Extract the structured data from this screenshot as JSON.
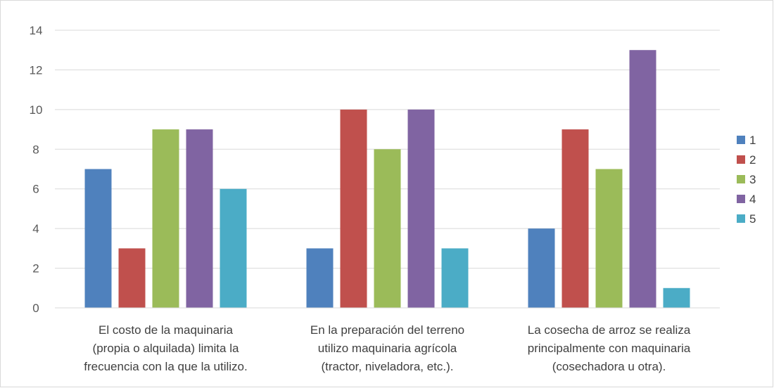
{
  "chart_data": {
    "type": "bar",
    "categories": [
      [
        "El costo de la maquinaria",
        "(propia o alquilada) limita la",
        "frecuencia con la que la utilizo."
      ],
      [
        "En la preparación del terreno",
        "utilizo maquinaria agrícola",
        "(tractor, niveladora, etc.)."
      ],
      [
        "La cosecha de arroz se realiza",
        "principalmente con maquinaria",
        "(cosechadora u otra)."
      ]
    ],
    "series": [
      {
        "name": "1",
        "color": "#4f81bd",
        "values": [
          7,
          3,
          4
        ]
      },
      {
        "name": "2",
        "color": "#c0504d",
        "values": [
          3,
          10,
          9
        ]
      },
      {
        "name": "3",
        "color": "#9bbb59",
        "values": [
          9,
          8,
          7
        ]
      },
      {
        "name": "4",
        "color": "#8064a2",
        "values": [
          9,
          10,
          13
        ]
      },
      {
        "name": "5",
        "color": "#4bacc6",
        "values": [
          6,
          3,
          1
        ]
      }
    ],
    "ylim": [
      0,
      14
    ],
    "yticks": [
      0,
      2,
      4,
      6,
      8,
      10,
      12,
      14
    ],
    "grid": true,
    "legend_position": "right"
  }
}
